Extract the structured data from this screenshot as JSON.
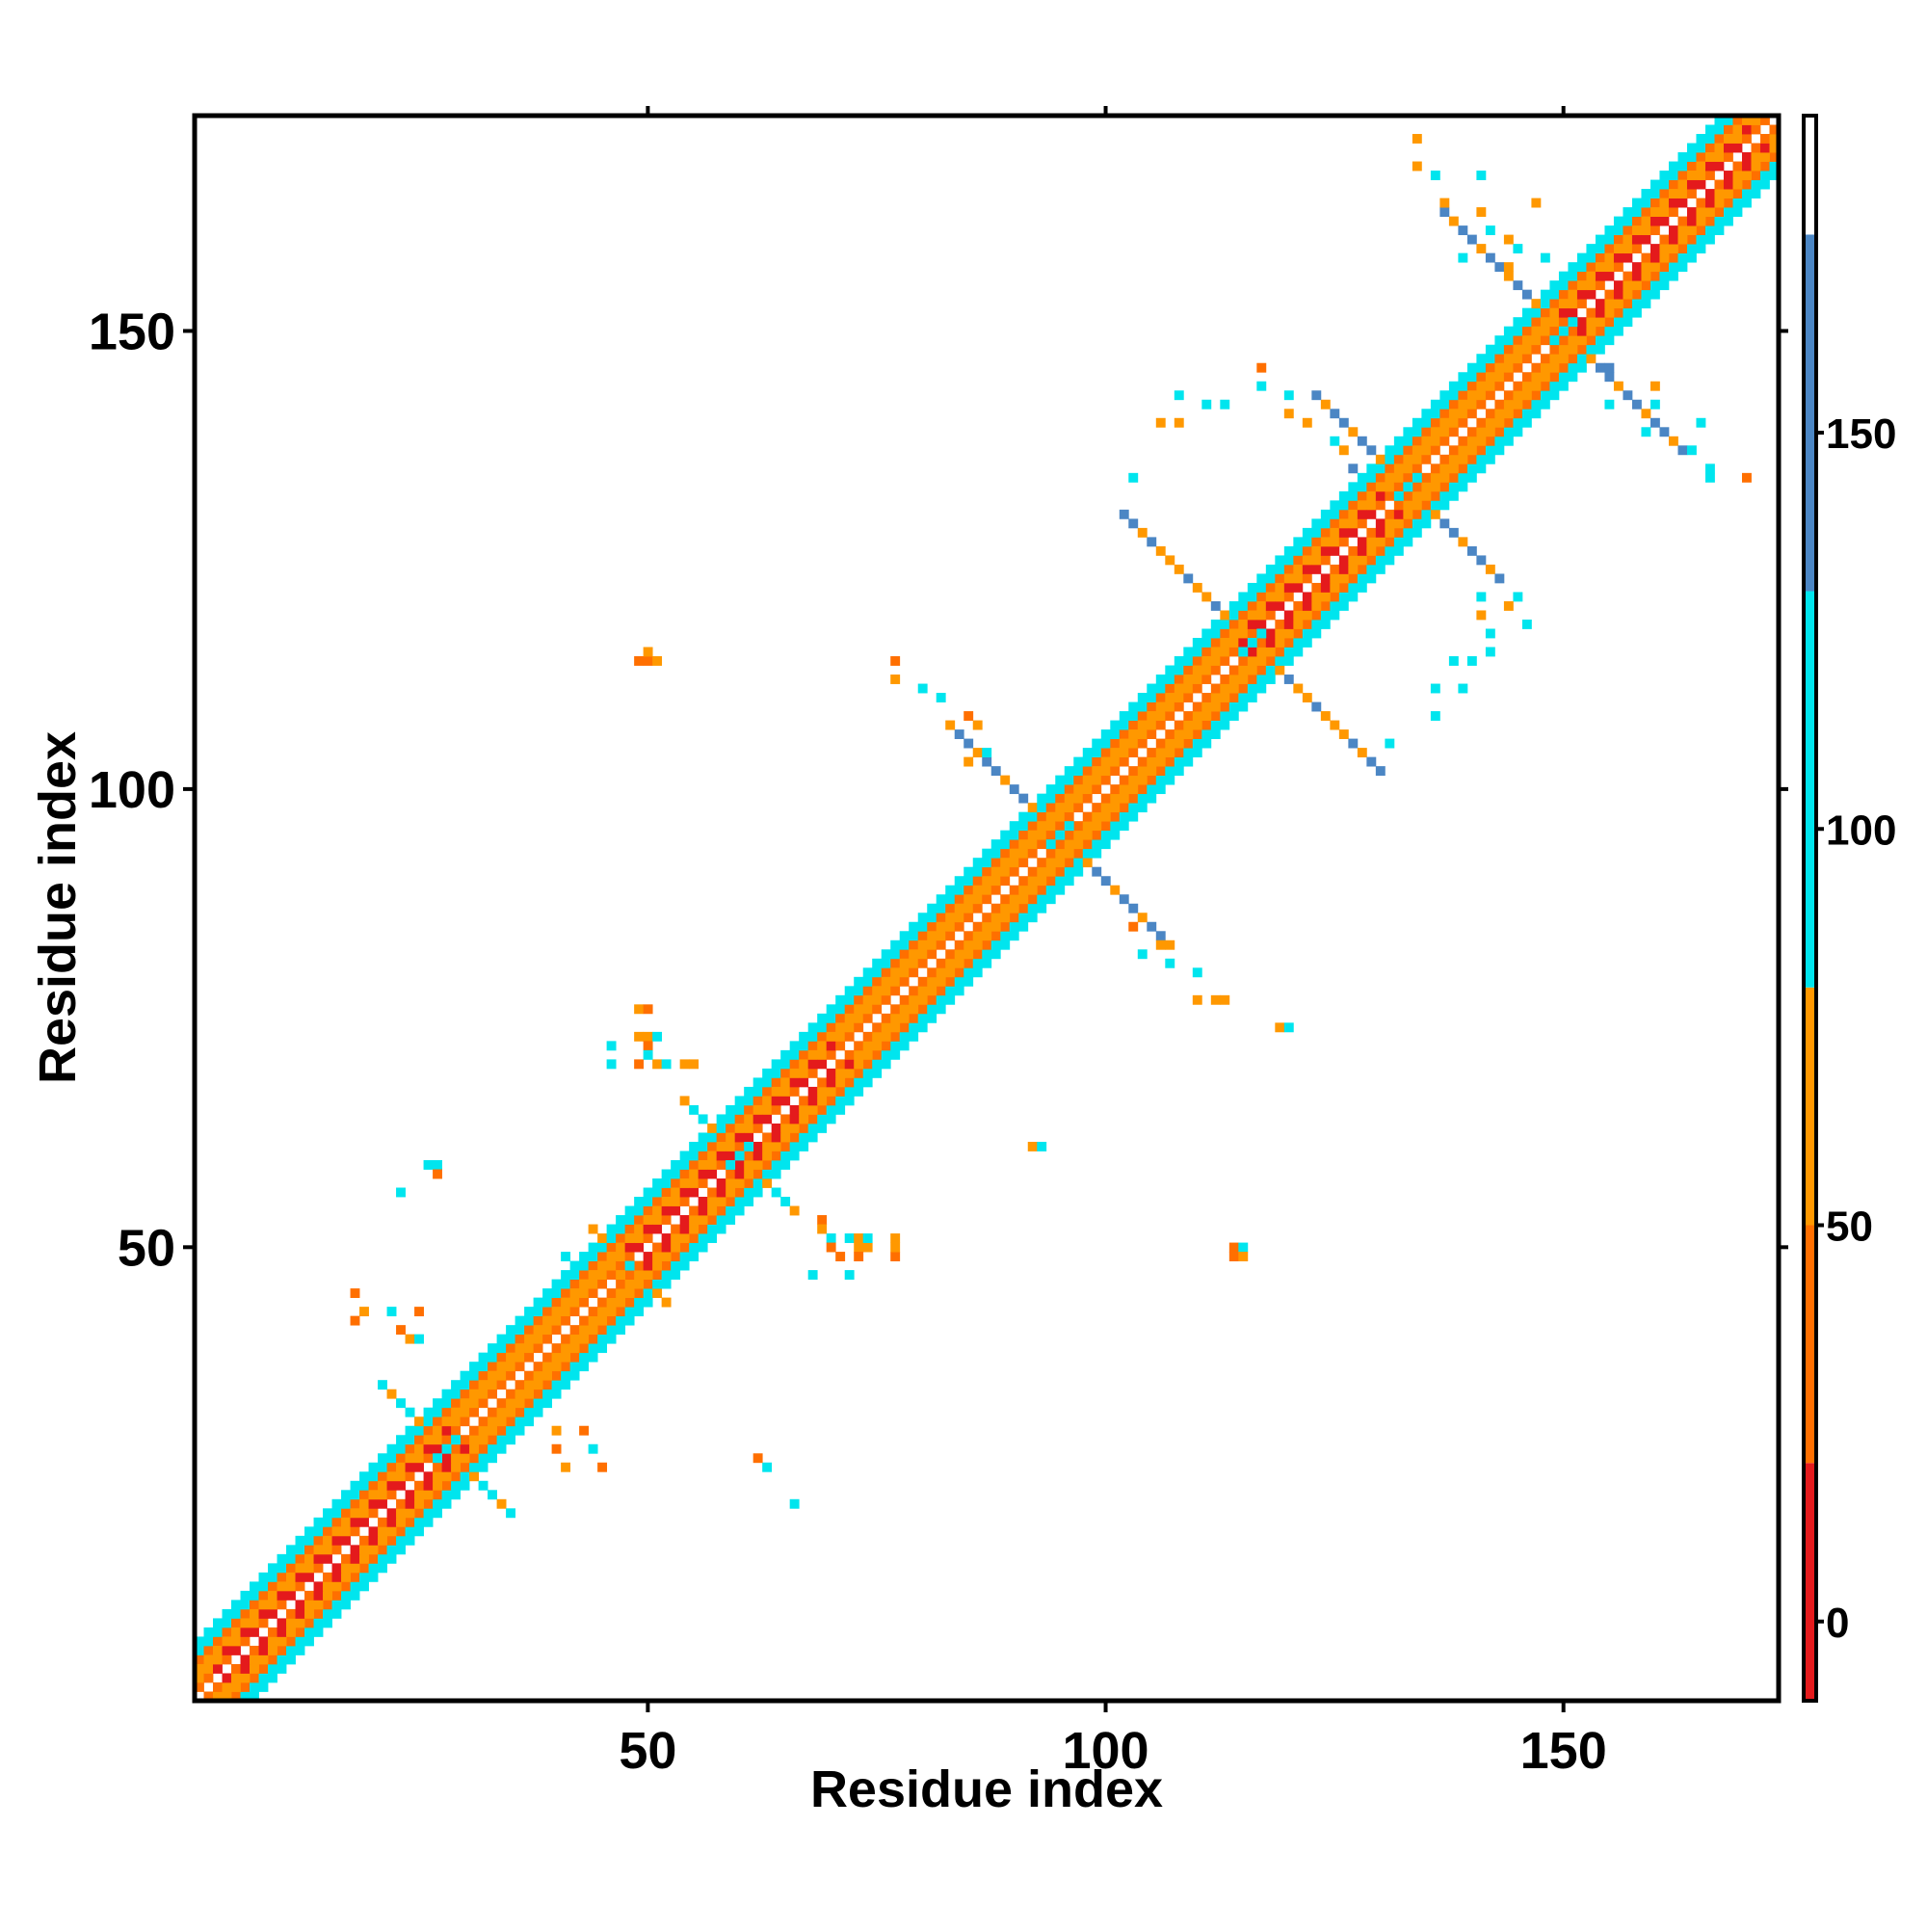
{
  "chart_data": {
    "type": "heatmap",
    "title": "",
    "xlabel": "Residue index",
    "ylabel": "Residue index",
    "xlim": [
      1,
      173
    ],
    "ylim": [
      1,
      173
    ],
    "x_ticks": [
      50,
      100,
      150
    ],
    "y_ticks": [
      50,
      100,
      150
    ],
    "x_tick_labels": [
      "50",
      "100",
      "150"
    ],
    "y_tick_labels": [
      "50",
      "100",
      "150"
    ],
    "grid": false,
    "legend": "colorbar-right",
    "colorbar": {
      "range": [
        -10,
        190
      ],
      "ticks": [
        0,
        50,
        100,
        150
      ],
      "tick_labels": [
        "0",
        "50",
        "100",
        "150"
      ],
      "bins": [
        {
          "from": -10,
          "to": 20,
          "color": "#e41a1c"
        },
        {
          "from": 20,
          "to": 50,
          "color": "#ff6f00"
        },
        {
          "from": 50,
          "to": 80,
          "color": "#ff9800"
        },
        {
          "from": 80,
          "to": 130,
          "color": "#00e5ee"
        },
        {
          "from": 130,
          "to": 175,
          "color": "#4b86c4"
        },
        {
          "from": 175,
          "to": 190,
          "color": "#ffffff"
        }
      ]
    },
    "colors": {
      "red": "#e41a1c",
      "dark_orange": "#ff6f00",
      "orange": "#ff9800",
      "cyan": "#00e5ee",
      "steel_blue": "#4b86c4"
    },
    "diagonal": {
      "residue_range": [
        1,
        173
      ],
      "bands": [
        {
          "offsets": [
            1,
            4
          ],
          "value": 40
        },
        {
          "offsets": [
            2,
            3
          ],
          "value": 60
        },
        {
          "offsets": [
            5,
            6
          ],
          "value": 100
        }
      ],
      "strong_segments": [
        {
          "range": [
            3,
            28
          ],
          "offsets": [
            1,
            2
          ],
          "value": 10
        },
        {
          "range": [
            48,
            62
          ],
          "offsets": [
            1,
            2
          ],
          "value": 10
        },
        {
          "range": [
            63,
            70
          ],
          "offsets": [
            1,
            2
          ],
          "value": 5
        },
        {
          "range": [
            115,
            130
          ],
          "offsets": [
            1,
            2
          ],
          "value": 10
        },
        {
          "range": [
            150,
            170
          ],
          "offsets": [
            1,
            2
          ],
          "value": 10
        }
      ]
    },
    "crossings": [
      {
        "center": [
          28,
          28
        ],
        "arms": [
          [
            6,
            3,
            105
          ],
          [
            -7,
            -3,
            105
          ]
        ],
        "halo": 2
      },
      {
        "center": [
          48,
          48
        ],
        "arms": [
          [
            4,
            2,
            60
          ],
          [
            -3,
            -2,
            60
          ]
        ],
        "halo": 1
      },
      {
        "center": [
          60,
          60
        ],
        "arms": [
          [
            6,
            2,
            110
          ],
          [
            -5,
            -3,
            100
          ]
        ],
        "halo": 2
      },
      {
        "center": [
          95,
          95
        ],
        "arms": [
          [
            12,
            11,
            140
          ],
          [
            -12,
            -11,
            140
          ]
        ],
        "halo": 3
      },
      {
        "center": [
          116,
          116
        ],
        "arms": [
          [
            14,
            12,
            140
          ],
          [
            -12,
            -14,
            140
          ]
        ],
        "halo": 3
      },
      {
        "center": [
          133,
          133
        ],
        "arms": [
          [
            10,
            8,
            140
          ],
          [
            -10,
            -8,
            140
          ]
        ],
        "halo": 2
      },
      {
        "center": [
          150,
          150
        ],
        "arms": [
          [
            13,
            11,
            140
          ],
          [
            -12,
            -11,
            140
          ]
        ],
        "halo": 2
      }
    ],
    "points": [
      {
        "x": 45,
        "y": 47,
        "v": 60
      },
      {
        "x": 47,
        "y": 47,
        "v": 60
      },
      {
        "x": 41,
        "y": 49,
        "v": 100
      },
      {
        "x": 40,
        "y": 30,
        "v": 60
      },
      {
        "x": 43,
        "y": 30,
        "v": 40
      },
      {
        "x": 40,
        "y": 28,
        "v": 40
      },
      {
        "x": 44,
        "y": 28,
        "v": 100
      },
      {
        "x": 41,
        "y": 26,
        "v": 60
      },
      {
        "x": 45,
        "y": 26,
        "v": 40
      },
      {
        "x": 66,
        "y": 22,
        "v": 100
      },
      {
        "x": 63,
        "y": 26,
        "v": 100
      },
      {
        "x": 62,
        "y": 27,
        "v": 40
      },
      {
        "x": 18,
        "y": 42,
        "v": 40
      },
      {
        "x": 19,
        "y": 43,
        "v": 60
      },
      {
        "x": 22,
        "y": 43,
        "v": 100
      },
      {
        "x": 23,
        "y": 41,
        "v": 40
      },
      {
        "x": 25,
        "y": 43,
        "v": 40
      },
      {
        "x": 24,
        "y": 40,
        "v": 60
      },
      {
        "x": 25,
        "y": 40,
        "v": 100
      },
      {
        "x": 18,
        "y": 45,
        "v": 40
      },
      {
        "x": 26,
        "y": 59,
        "v": 100
      },
      {
        "x": 27,
        "y": 59,
        "v": 100
      },
      {
        "x": 27,
        "y": 58,
        "v": 40
      },
      {
        "x": 23,
        "y": 56,
        "v": 100
      },
      {
        "x": 49,
        "y": 76,
        "v": 60
      },
      {
        "x": 50,
        "y": 76,
        "v": 40
      },
      {
        "x": 49,
        "y": 73,
        "v": 60
      },
      {
        "x": 50,
        "y": 73,
        "v": 60
      },
      {
        "x": 50,
        "y": 72,
        "v": 40
      },
      {
        "x": 51,
        "y": 73,
        "v": 100
      },
      {
        "x": 46,
        "y": 72,
        "v": 100
      },
      {
        "x": 46,
        "y": 70,
        "v": 100
      },
      {
        "x": 49,
        "y": 70,
        "v": 40
      },
      {
        "x": 51,
        "y": 70,
        "v": 60
      },
      {
        "x": 52,
        "y": 70,
        "v": 100
      },
      {
        "x": 54,
        "y": 70,
        "v": 60
      },
      {
        "x": 55,
        "y": 70,
        "v": 60
      },
      {
        "x": 50,
        "y": 71,
        "v": 100
      },
      {
        "x": 49,
        "y": 114,
        "v": 40
      },
      {
        "x": 50,
        "y": 114,
        "v": 40
      },
      {
        "x": 51,
        "y": 114,
        "v": 60
      },
      {
        "x": 50,
        "y": 115,
        "v": 60
      },
      {
        "x": 70,
        "y": 51,
        "v": 100
      },
      {
        "x": 72,
        "y": 51,
        "v": 100
      },
      {
        "x": 73,
        "y": 51,
        "v": 60
      },
      {
        "x": 73,
        "y": 50,
        "v": 60
      },
      {
        "x": 74,
        "y": 50,
        "v": 60
      },
      {
        "x": 73,
        "y": 49,
        "v": 40
      },
      {
        "x": 70,
        "y": 50,
        "v": 40
      },
      {
        "x": 71,
        "y": 49,
        "v": 40
      },
      {
        "x": 69,
        "y": 53,
        "v": 40
      },
      {
        "x": 69,
        "y": 52,
        "v": 60
      },
      {
        "x": 77,
        "y": 49,
        "v": 40
      },
      {
        "x": 77,
        "y": 50,
        "v": 60
      },
      {
        "x": 77,
        "y": 51,
        "v": 60
      },
      {
        "x": 74,
        "y": 51,
        "v": 100
      },
      {
        "x": 68,
        "y": 47,
        "v": 100
      },
      {
        "x": 72,
        "y": 47,
        "v": 100
      },
      {
        "x": 114,
        "y": 50,
        "v": 40
      },
      {
        "x": 114,
        "y": 49,
        "v": 40
      },
      {
        "x": 115,
        "y": 50,
        "v": 100
      },
      {
        "x": 115,
        "y": 49,
        "v": 60
      },
      {
        "x": 92,
        "y": 61,
        "v": 60
      },
      {
        "x": 93,
        "y": 61,
        "v": 100
      },
      {
        "x": 119,
        "y": 74,
        "v": 60
      },
      {
        "x": 120,
        "y": 74,
        "v": 100
      },
      {
        "x": 110,
        "y": 77,
        "v": 60
      },
      {
        "x": 112,
        "y": 77,
        "v": 60
      },
      {
        "x": 113,
        "y": 77,
        "v": 60
      },
      {
        "x": 107,
        "y": 81,
        "v": 100
      },
      {
        "x": 110,
        "y": 80,
        "v": 100
      },
      {
        "x": 106,
        "y": 83,
        "v": 60
      },
      {
        "x": 104,
        "y": 82,
        "v": 100
      },
      {
        "x": 103,
        "y": 85,
        "v": 40
      },
      {
        "x": 77,
        "y": 114,
        "v": 40
      },
      {
        "x": 77,
        "y": 112,
        "v": 60
      },
      {
        "x": 80,
        "y": 111,
        "v": 100
      },
      {
        "x": 82,
        "y": 110,
        "v": 100
      },
      {
        "x": 85,
        "y": 108,
        "v": 40
      },
      {
        "x": 86,
        "y": 107,
        "v": 60
      },
      {
        "x": 87,
        "y": 104,
        "v": 100
      },
      {
        "x": 85,
        "y": 103,
        "v": 60
      },
      {
        "x": 106,
        "y": 140,
        "v": 60
      },
      {
        "x": 108,
        "y": 140,
        "v": 60
      },
      {
        "x": 111,
        "y": 142,
        "v": 100
      },
      {
        "x": 113,
        "y": 142,
        "v": 100
      },
      {
        "x": 117,
        "y": 144,
        "v": 100
      },
      {
        "x": 117,
        "y": 146,
        "v": 40
      },
      {
        "x": 120,
        "y": 143,
        "v": 100
      },
      {
        "x": 120,
        "y": 141,
        "v": 60
      },
      {
        "x": 122,
        "y": 140,
        "v": 60
      },
      {
        "x": 125,
        "y": 138,
        "v": 100
      },
      {
        "x": 126,
        "y": 137,
        "v": 60
      },
      {
        "x": 127,
        "y": 135,
        "v": 140
      },
      {
        "x": 103,
        "y": 134,
        "v": 100
      },
      {
        "x": 108,
        "y": 143,
        "v": 100
      },
      {
        "x": 138,
        "y": 114,
        "v": 100
      },
      {
        "x": 140,
        "y": 114,
        "v": 100
      },
      {
        "x": 136,
        "y": 111,
        "v": 100
      },
      {
        "x": 139,
        "y": 111,
        "v": 100
      },
      {
        "x": 142,
        "y": 115,
        "v": 100
      },
      {
        "x": 142,
        "y": 117,
        "v": 100
      },
      {
        "x": 136,
        "y": 108,
        "v": 100
      },
      {
        "x": 131,
        "y": 105,
        "v": 100
      },
      {
        "x": 128,
        "y": 104,
        "v": 100
      },
      {
        "x": 141,
        "y": 119,
        "v": 60
      },
      {
        "x": 145,
        "y": 121,
        "v": 100
      },
      {
        "x": 146,
        "y": 118,
        "v": 100
      },
      {
        "x": 141,
        "y": 121,
        "v": 100
      },
      {
        "x": 144,
        "y": 120,
        "v": 60
      },
      {
        "x": 148,
        "y": 146,
        "v": 100
      },
      {
        "x": 149,
        "y": 145,
        "v": 60
      },
      {
        "x": 151,
        "y": 145,
        "v": 100
      },
      {
        "x": 155,
        "y": 146,
        "v": 140
      },
      {
        "x": 155,
        "y": 142,
        "v": 100
      },
      {
        "x": 160,
        "y": 142,
        "v": 100
      },
      {
        "x": 159,
        "y": 139,
        "v": 100
      },
      {
        "x": 162,
        "y": 138,
        "v": 60
      },
      {
        "x": 164,
        "y": 137,
        "v": 100
      },
      {
        "x": 166,
        "y": 135,
        "v": 100
      },
      {
        "x": 166,
        "y": 134,
        "v": 100
      },
      {
        "x": 170,
        "y": 134,
        "v": 40
      },
      {
        "x": 165,
        "y": 140,
        "v": 100
      },
      {
        "x": 160,
        "y": 144,
        "v": 60
      },
      {
        "x": 134,
        "y": 171,
        "v": 60
      },
      {
        "x": 134,
        "y": 168,
        "v": 60
      },
      {
        "x": 136,
        "y": 167,
        "v": 100
      },
      {
        "x": 137,
        "y": 164,
        "v": 60
      },
      {
        "x": 138,
        "y": 162,
        "v": 100
      },
      {
        "x": 141,
        "y": 163,
        "v": 60
      },
      {
        "x": 142,
        "y": 161,
        "v": 100
      },
      {
        "x": 145,
        "y": 159,
        "v": 100
      },
      {
        "x": 144,
        "y": 160,
        "v": 60
      },
      {
        "x": 141,
        "y": 167,
        "v": 100
      },
      {
        "x": 147,
        "y": 164,
        "v": 60
      },
      {
        "x": 144,
        "y": 157,
        "v": 60
      },
      {
        "x": 148,
        "y": 158,
        "v": 100
      },
      {
        "x": 139,
        "y": 158,
        "v": 100
      }
    ]
  }
}
